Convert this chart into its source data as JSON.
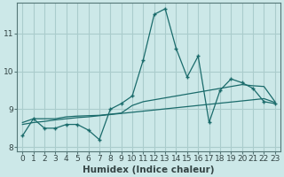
{
  "title": "",
  "xlabel": "Humidex (Indice chaleur)",
  "background_color": "#cce8e8",
  "grid_color": "#aacccc",
  "line_color": "#1a6b6b",
  "x_values": [
    0,
    1,
    2,
    3,
    4,
    5,
    6,
    7,
    8,
    9,
    10,
    11,
    12,
    13,
    14,
    15,
    16,
    17,
    18,
    19,
    20,
    21,
    22,
    23
  ],
  "line1_y": [
    8.3,
    8.75,
    8.5,
    8.5,
    8.6,
    8.6,
    8.45,
    8.2,
    9.0,
    9.15,
    9.35,
    10.3,
    11.5,
    11.65,
    10.6,
    9.85,
    10.4,
    8.65,
    9.5,
    9.8,
    9.7,
    9.55,
    9.2,
    9.15
  ],
  "line2_y": [
    8.65,
    8.75,
    8.75,
    8.75,
    8.8,
    8.82,
    8.83,
    8.84,
    8.87,
    8.9,
    9.1,
    9.2,
    9.25,
    9.3,
    9.35,
    9.4,
    9.45,
    9.5,
    9.55,
    9.6,
    9.65,
    9.62,
    9.6,
    9.2
  ],
  "line3_y": [
    8.6,
    8.65,
    8.68,
    8.72,
    8.75,
    8.78,
    8.8,
    8.83,
    8.86,
    8.89,
    8.92,
    8.95,
    8.98,
    9.01,
    9.04,
    9.07,
    9.1,
    9.13,
    9.16,
    9.19,
    9.22,
    9.25,
    9.28,
    9.18
  ],
  "ylim": [
    7.9,
    11.8
  ],
  "xlim": [
    -0.5,
    23.5
  ],
  "yticks": [
    8,
    9,
    10,
    11
  ],
  "xticks": [
    0,
    1,
    2,
    3,
    4,
    5,
    6,
    7,
    8,
    9,
    10,
    11,
    12,
    13,
    14,
    15,
    16,
    17,
    18,
    19,
    20,
    21,
    22,
    23
  ],
  "tick_fontsize": 6.5,
  "xlabel_fontsize": 7.5
}
